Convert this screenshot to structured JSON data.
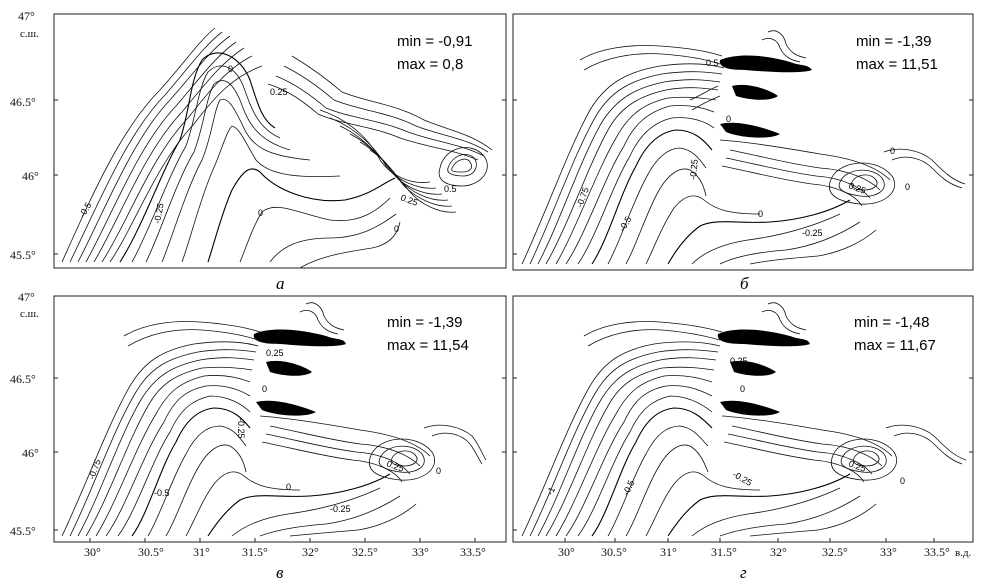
{
  "y_axis": {
    "top_label": "47°",
    "unit": "с.ш.",
    "ticks": [
      "46.5°",
      "46°",
      "45.5°"
    ]
  },
  "x_axis": {
    "ticks": [
      "30°",
      "30.5°",
      "31°",
      "31.5°",
      "32°",
      "32.5°",
      "33°",
      "33.5°"
    ],
    "unit": "в.д."
  },
  "panels": [
    {
      "letter": "а",
      "min_text": "min = -0,91",
      "max_text": "max = 0,8",
      "contour_labels": [
        "0",
        "0.25",
        "-0.5",
        "-0.25",
        "0",
        "0.25",
        "0.5",
        "0"
      ]
    },
    {
      "letter": "б",
      "min_text": "min = -1,39",
      "max_text": "max = 11,51",
      "contour_labels": [
        "0.5",
        "0.25",
        "-0.25",
        "-0.75",
        "-0.5",
        "0",
        "0.25",
        "0",
        "-0.25",
        "0",
        "0"
      ]
    },
    {
      "letter": "в",
      "min_text": "min = -1,39",
      "max_text": "max = 11,54",
      "contour_labels": [
        "0.25",
        "-0.25",
        "-0.75",
        "-0.5",
        "0",
        "0.25",
        "-0.25",
        "0",
        "0"
      ]
    },
    {
      "letter": "г",
      "min_text": "min = -1,48",
      "max_text": "max = 11,67",
      "contour_labels": [
        "-1",
        "-0.5",
        "-0.25",
        "0.25",
        "0",
        "0.25",
        "0"
      ]
    }
  ]
}
